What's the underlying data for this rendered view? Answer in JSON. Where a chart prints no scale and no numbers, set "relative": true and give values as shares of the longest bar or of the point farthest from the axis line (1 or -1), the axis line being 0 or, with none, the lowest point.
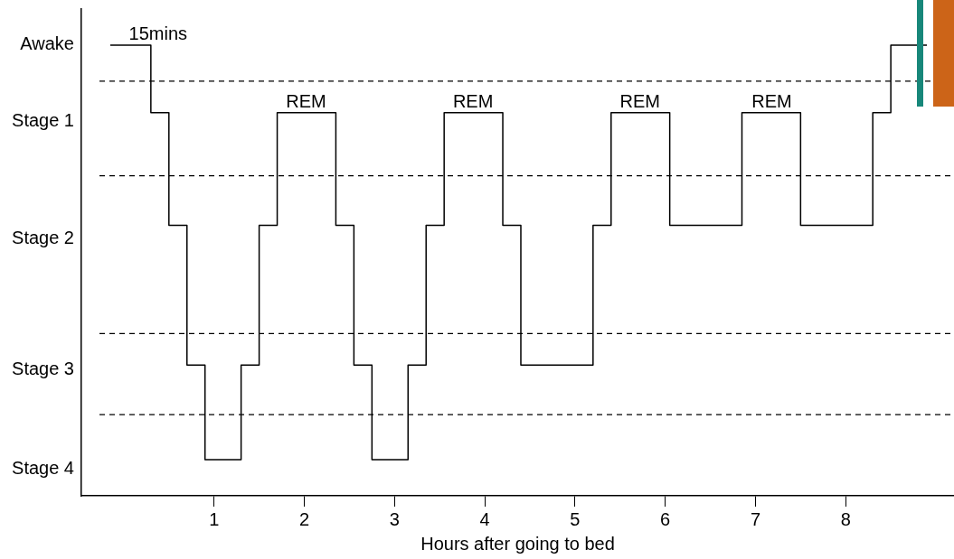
{
  "chart_data": {
    "type": "step",
    "xlabel": "Hours after going to bed",
    "relative": true,
    "x": [
      -0.15,
      0.3,
      0.5,
      0.7,
      0.9,
      1.3,
      1.5,
      1.7,
      2.35,
      2.55,
      2.75,
      3.15,
      3.35,
      3.55,
      4.2,
      4.4,
      5.2,
      5.4,
      6.05,
      6.85,
      7.5,
      8.3,
      8.5,
      8.9
    ],
    "series": [
      {
        "color": "#000000",
        "values": [
          1,
          0.85,
          0.6,
          0.29,
          0.08,
          0.29,
          0.6,
          0.85,
          0.6,
          0.29,
          0.08,
          0.29,
          0.6,
          0.85,
          0.6,
          0.29,
          0.6,
          0.85,
          0.6,
          0.85,
          0.6,
          0.85,
          1,
          1
        ]
      }
    ],
    "xlim": [
      -0.47,
      9.2
    ],
    "xticks": [
      1,
      2,
      3,
      4,
      5,
      6,
      7,
      8
    ],
    "ref_lines": [
      {
        "axis": "y",
        "value": 0.92,
        "color": "#000000",
        "line_style": "dashed"
      },
      {
        "axis": "y",
        "value": 0.71,
        "color": "#000000",
        "line_style": "dashed"
      },
      {
        "axis": "y",
        "value": 0.36,
        "color": "#000000",
        "line_style": "dashed"
      },
      {
        "axis": "y",
        "value": 0.18,
        "color": "#000000",
        "line_style": "dashed"
      }
    ],
    "annotations": [
      "Awake",
      "Stage 1",
      "Stage 2",
      "Stage 3",
      "Stage 4",
      "15mins",
      "REM",
      "REM",
      "REM",
      "REM"
    ],
    "grid": false,
    "legend": false
  }
}
